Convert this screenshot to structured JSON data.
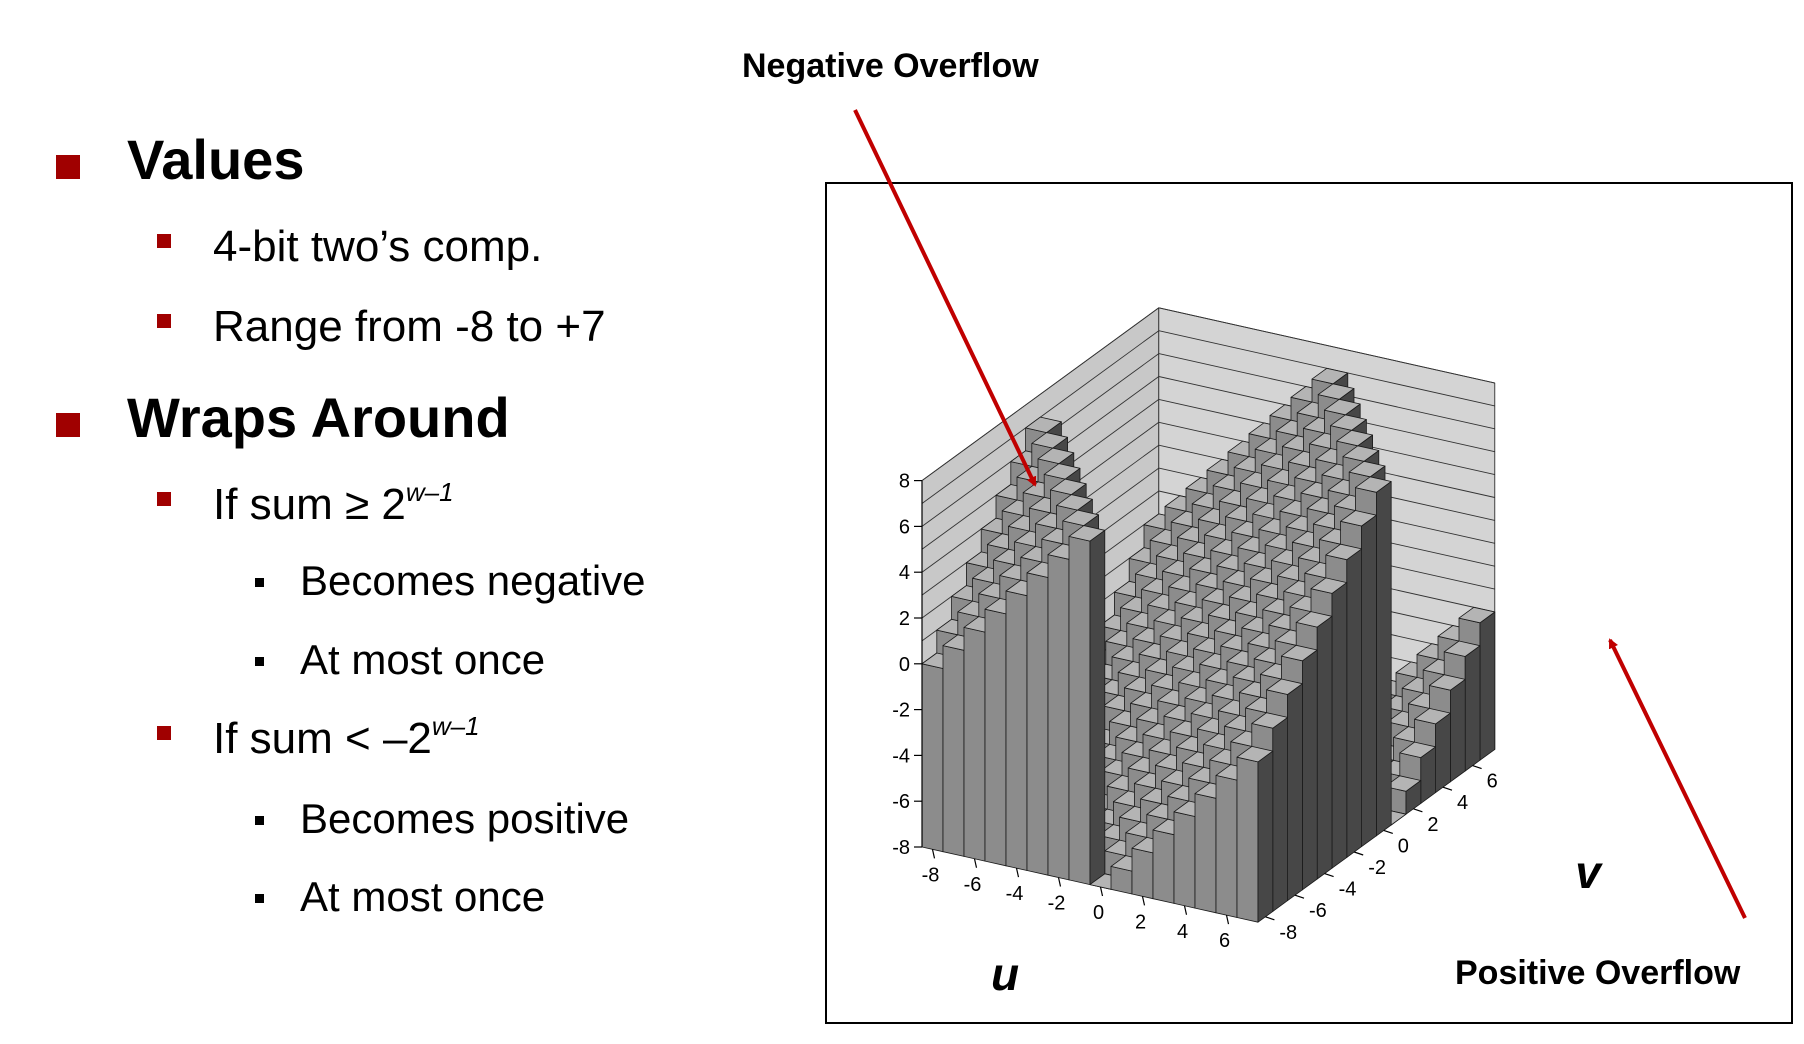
{
  "slide": {
    "items": [
      {
        "level": 1,
        "text": "Values"
      },
      {
        "level": 2,
        "text": "4-bit two’s comp."
      },
      {
        "level": 2,
        "text": "Range from -8 to +7"
      },
      {
        "level": 1,
        "text": "Wraps Around"
      },
      {
        "level": 2,
        "text": "If sum ≥ 2",
        "sup": "w–1"
      },
      {
        "level": 3,
        "text": "Becomes negative"
      },
      {
        "level": 3,
        "text": "At most once"
      },
      {
        "level": 2,
        "text": "If sum < –2",
        "sup": "w–1"
      },
      {
        "level": 3,
        "text": "Becomes positive"
      },
      {
        "level": 3,
        "text": "At most once"
      }
    ]
  },
  "annotations": {
    "negative": "Negative Overflow",
    "positive": "Positive Overflow"
  },
  "colors": {
    "bullet": "#a00000",
    "arrow": "#c00000",
    "bar_front": "#8c8c8c",
    "bar_side": "#474747",
    "bar_top": "#b4b4b4",
    "wall": "#c8c8c8"
  },
  "chart_data": {
    "type": "3d-bar",
    "formula": "two's complement sum of u and v, 4-bit",
    "u_values": [
      -8,
      -7,
      -6,
      -5,
      -4,
      -3,
      -2,
      -1,
      0,
      1,
      2,
      3,
      4,
      5,
      6,
      7
    ],
    "v_values": [
      -8,
      -7,
      -6,
      -5,
      -4,
      -3,
      -2,
      -1,
      0,
      1,
      2,
      3,
      4,
      5,
      6,
      7
    ],
    "u_ticks": [
      "-8",
      "-6",
      "-4",
      "-2",
      "0",
      "2",
      "4",
      "6"
    ],
    "v_ticks": [
      "-8",
      "-6",
      "-4",
      "-2",
      "0",
      "2",
      "4",
      "6"
    ],
    "z_ticks": [
      "-8",
      "-6",
      "-4",
      "-2",
      "0",
      "2",
      "4",
      "6",
      "8"
    ],
    "zlim": [
      -8,
      8
    ],
    "xlabel": "u",
    "ylabel": "v"
  }
}
